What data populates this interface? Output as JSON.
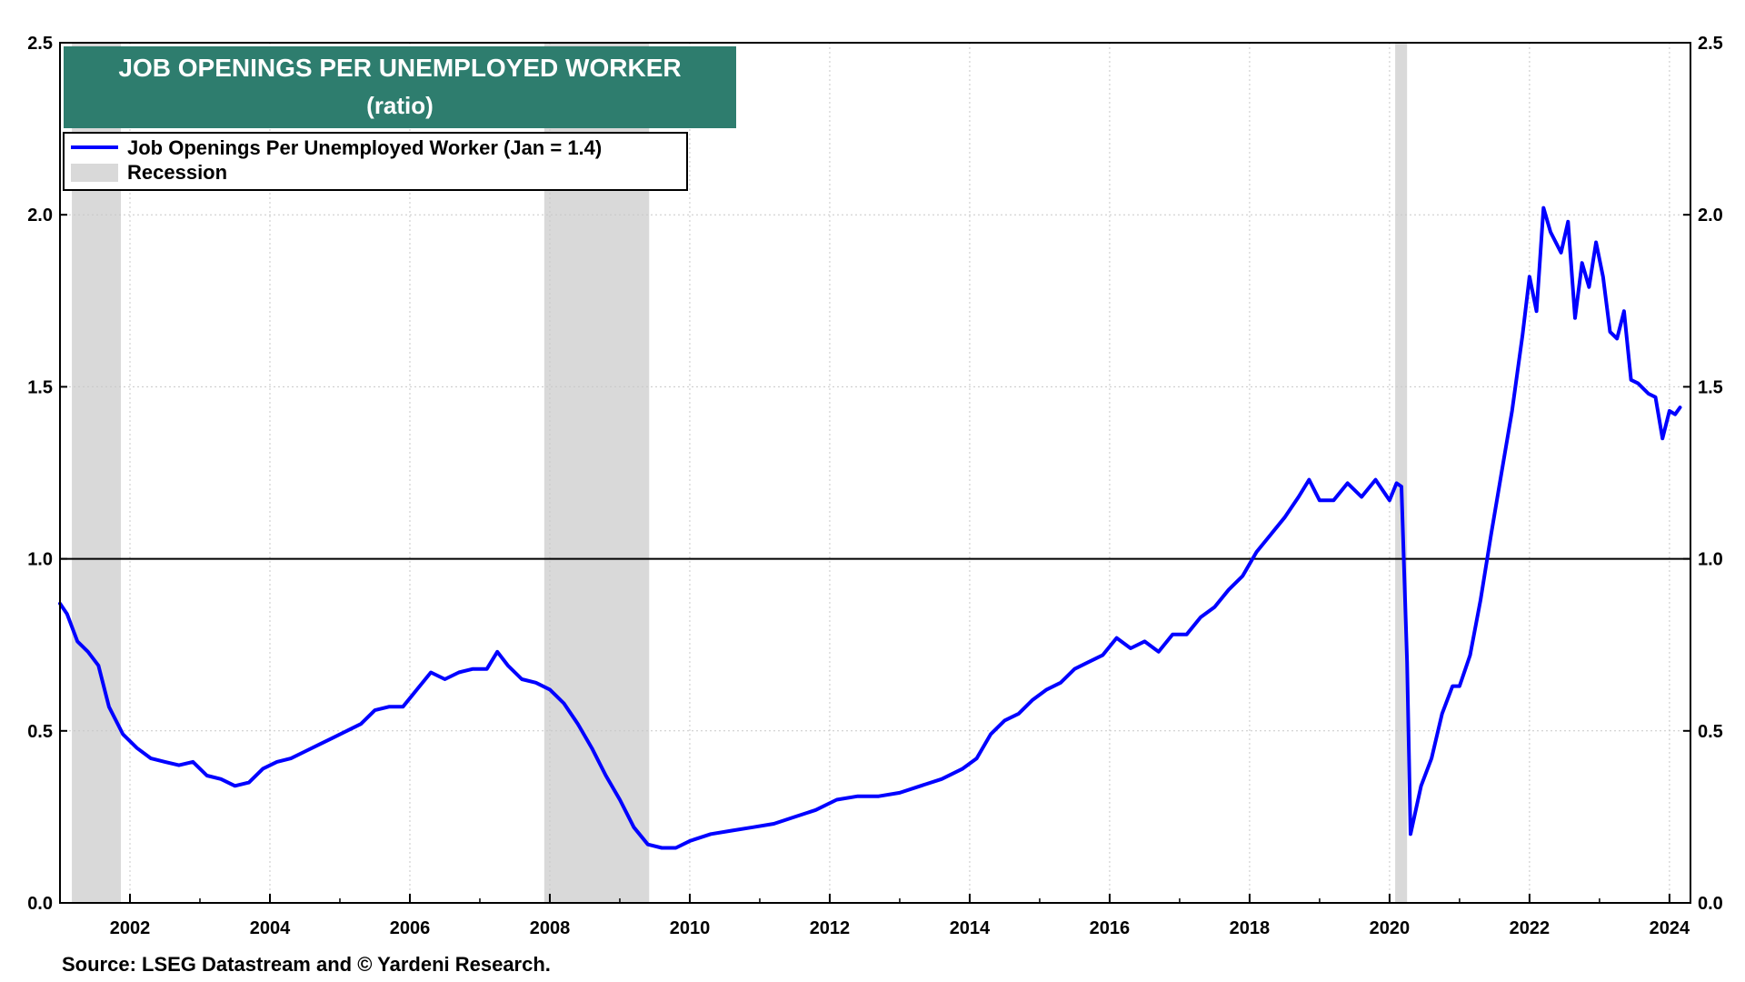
{
  "chart_data": {
    "type": "line",
    "title": "JOB OPENINGS PER UNEMPLOYED WORKER",
    "subtitle": "(ratio)",
    "x_range": [
      2001.0,
      2024.3
    ],
    "ylim": [
      0,
      2.5
    ],
    "yticks": [
      0.0,
      0.5,
      1.0,
      1.5,
      2.0,
      2.5
    ],
    "ytick_labels": [
      "0.0",
      "0.5",
      "1.0",
      "1.5",
      "2.0",
      "2.5"
    ],
    "xticks": [
      2002,
      2004,
      2006,
      2008,
      2010,
      2012,
      2014,
      2016,
      2018,
      2020,
      2022,
      2024
    ],
    "xtick_labels": [
      "2002",
      "2004",
      "2006",
      "2008",
      "2010",
      "2012",
      "2014",
      "2016",
      "2018",
      "2020",
      "2022",
      "2024"
    ],
    "reference_line": 1.0,
    "grid": "dotted",
    "legend_position": "top-left",
    "legend": [
      {
        "label": "Job Openings Per Unemployed Worker (Jan = 1.4)",
        "kind": "line",
        "color": "#0000ff"
      },
      {
        "label": "Recession",
        "kind": "band",
        "color": "#d9d9d9"
      }
    ],
    "recessions": [
      [
        2001.17,
        2001.87
      ],
      [
        2007.92,
        2009.42
      ],
      [
        2020.08,
        2020.25
      ]
    ],
    "series": [
      {
        "name": "Job Openings Per Unemployed Worker (Jan = 1.4)",
        "color": "#0000ff",
        "points": [
          [
            2001.0,
            0.87
          ],
          [
            2001.1,
            0.84
          ],
          [
            2001.25,
            0.76
          ],
          [
            2001.4,
            0.73
          ],
          [
            2001.55,
            0.69
          ],
          [
            2001.7,
            0.57
          ],
          [
            2001.9,
            0.49
          ],
          [
            2002.1,
            0.45
          ],
          [
            2002.3,
            0.42
          ],
          [
            2002.5,
            0.41
          ],
          [
            2002.7,
            0.4
          ],
          [
            2002.9,
            0.41
          ],
          [
            2003.1,
            0.37
          ],
          [
            2003.3,
            0.36
          ],
          [
            2003.5,
            0.34
          ],
          [
            2003.7,
            0.35
          ],
          [
            2003.9,
            0.39
          ],
          [
            2004.1,
            0.41
          ],
          [
            2004.3,
            0.42
          ],
          [
            2004.5,
            0.44
          ],
          [
            2004.7,
            0.46
          ],
          [
            2004.9,
            0.48
          ],
          [
            2005.1,
            0.5
          ],
          [
            2005.3,
            0.52
          ],
          [
            2005.5,
            0.56
          ],
          [
            2005.7,
            0.57
          ],
          [
            2005.9,
            0.57
          ],
          [
            2006.1,
            0.62
          ],
          [
            2006.3,
            0.67
          ],
          [
            2006.5,
            0.65
          ],
          [
            2006.7,
            0.67
          ],
          [
            2006.9,
            0.68
          ],
          [
            2007.1,
            0.68
          ],
          [
            2007.25,
            0.73
          ],
          [
            2007.4,
            0.69
          ],
          [
            2007.6,
            0.65
          ],
          [
            2007.8,
            0.64
          ],
          [
            2008.0,
            0.62
          ],
          [
            2008.2,
            0.58
          ],
          [
            2008.4,
            0.52
          ],
          [
            2008.6,
            0.45
          ],
          [
            2008.8,
            0.37
          ],
          [
            2009.0,
            0.3
          ],
          [
            2009.2,
            0.22
          ],
          [
            2009.4,
            0.17
          ],
          [
            2009.6,
            0.16
          ],
          [
            2009.8,
            0.16
          ],
          [
            2010.0,
            0.18
          ],
          [
            2010.3,
            0.2
          ],
          [
            2010.6,
            0.21
          ],
          [
            2010.9,
            0.22
          ],
          [
            2011.2,
            0.23
          ],
          [
            2011.5,
            0.25
          ],
          [
            2011.8,
            0.27
          ],
          [
            2012.1,
            0.3
          ],
          [
            2012.4,
            0.31
          ],
          [
            2012.7,
            0.31
          ],
          [
            2013.0,
            0.32
          ],
          [
            2013.3,
            0.34
          ],
          [
            2013.6,
            0.36
          ],
          [
            2013.9,
            0.39
          ],
          [
            2014.1,
            0.42
          ],
          [
            2014.3,
            0.49
          ],
          [
            2014.5,
            0.53
          ],
          [
            2014.7,
            0.55
          ],
          [
            2014.9,
            0.59
          ],
          [
            2015.1,
            0.62
          ],
          [
            2015.3,
            0.64
          ],
          [
            2015.5,
            0.68
          ],
          [
            2015.7,
            0.7
          ],
          [
            2015.9,
            0.72
          ],
          [
            2016.1,
            0.77
          ],
          [
            2016.3,
            0.74
          ],
          [
            2016.5,
            0.76
          ],
          [
            2016.7,
            0.73
          ],
          [
            2016.9,
            0.78
          ],
          [
            2017.1,
            0.78
          ],
          [
            2017.3,
            0.83
          ],
          [
            2017.5,
            0.86
          ],
          [
            2017.7,
            0.91
          ],
          [
            2017.9,
            0.95
          ],
          [
            2018.1,
            1.02
          ],
          [
            2018.3,
            1.07
          ],
          [
            2018.5,
            1.12
          ],
          [
            2018.7,
            1.18
          ],
          [
            2018.85,
            1.23
          ],
          [
            2019.0,
            1.17
          ],
          [
            2019.2,
            1.17
          ],
          [
            2019.4,
            1.22
          ],
          [
            2019.6,
            1.18
          ],
          [
            2019.8,
            1.23
          ],
          [
            2020.0,
            1.17
          ],
          [
            2020.1,
            1.22
          ],
          [
            2020.17,
            1.21
          ],
          [
            2020.25,
            0.7
          ],
          [
            2020.3,
            0.2
          ],
          [
            2020.45,
            0.34
          ],
          [
            2020.6,
            0.42
          ],
          [
            2020.75,
            0.55
          ],
          [
            2020.9,
            0.63
          ],
          [
            2021.0,
            0.63
          ],
          [
            2021.15,
            0.72
          ],
          [
            2021.3,
            0.88
          ],
          [
            2021.45,
            1.07
          ],
          [
            2021.6,
            1.25
          ],
          [
            2021.75,
            1.43
          ],
          [
            2021.9,
            1.65
          ],
          [
            2022.0,
            1.82
          ],
          [
            2022.1,
            1.72
          ],
          [
            2022.2,
            2.02
          ],
          [
            2022.3,
            1.95
          ],
          [
            2022.45,
            1.89
          ],
          [
            2022.55,
            1.98
          ],
          [
            2022.65,
            1.7
          ],
          [
            2022.75,
            1.86
          ],
          [
            2022.85,
            1.79
          ],
          [
            2022.95,
            1.92
          ],
          [
            2023.05,
            1.82
          ],
          [
            2023.15,
            1.66
          ],
          [
            2023.25,
            1.64
          ],
          [
            2023.35,
            1.72
          ],
          [
            2023.45,
            1.52
          ],
          [
            2023.55,
            1.51
          ],
          [
            2023.7,
            1.48
          ],
          [
            2023.8,
            1.47
          ],
          [
            2023.9,
            1.35
          ],
          [
            2024.0,
            1.43
          ],
          [
            2024.08,
            1.42
          ],
          [
            2024.15,
            1.44
          ]
        ]
      }
    ],
    "source": "Source: LSEG Datastream and © Yardeni Research."
  }
}
